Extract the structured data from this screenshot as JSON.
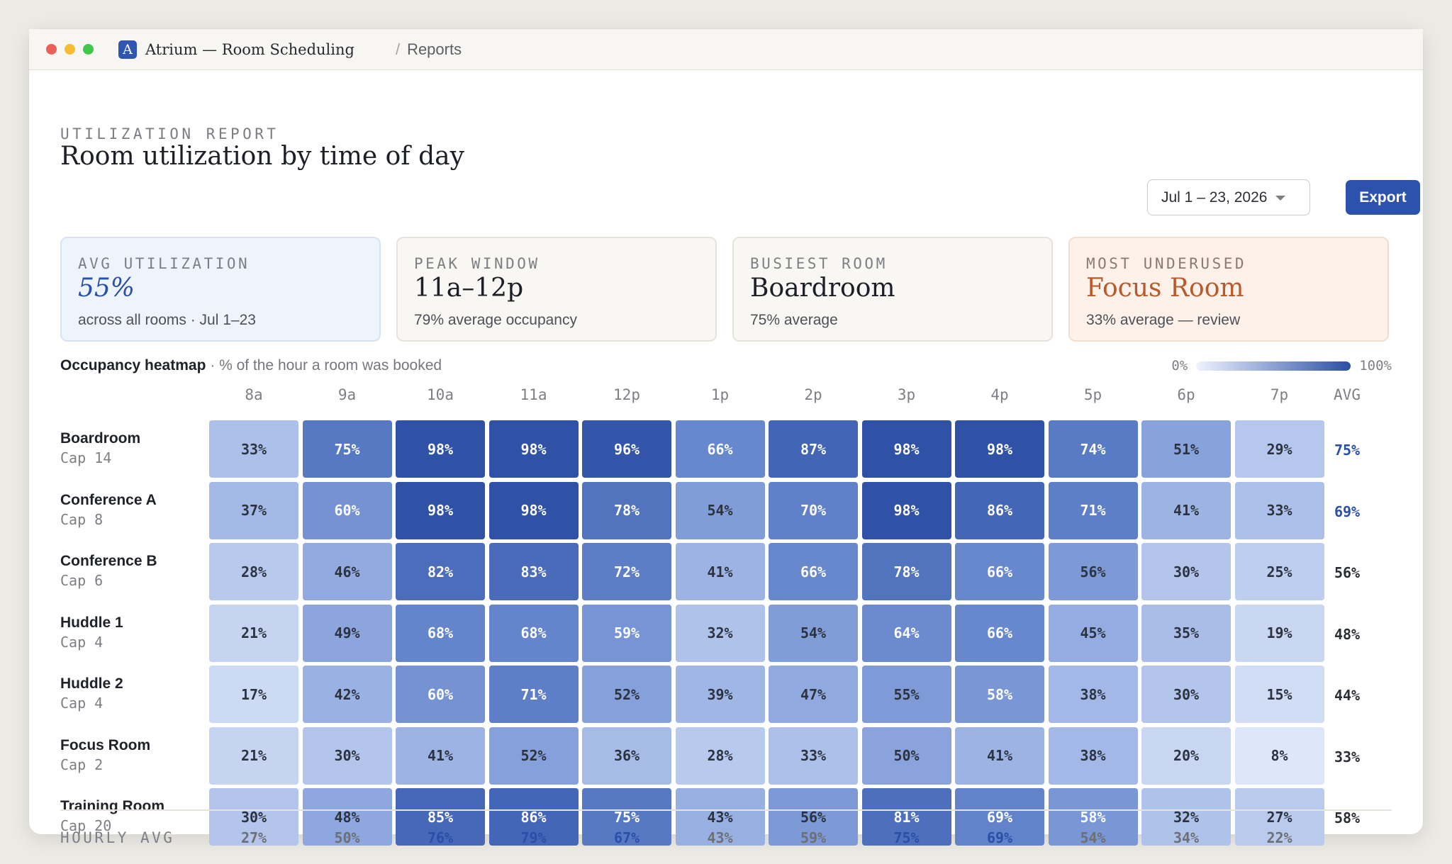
{
  "window": {
    "app_logo": "A",
    "app_title": "Atrium — Room Scheduling",
    "breadcrumb_sep": "/",
    "breadcrumb": "Reports"
  },
  "header": {
    "eyebrow": "UTILIZATION REPORT",
    "title": "Room utilization by time of day",
    "date_range": "Jul 1 – 23, 2026",
    "export_label": "Export"
  },
  "kpis": [
    {
      "label": "AVG UTILIZATION",
      "value": "55%",
      "sub": "across all rooms · Jul 1–23"
    },
    {
      "label": "PEAK WINDOW",
      "value": "11a–12p",
      "sub": "79% average occupancy"
    },
    {
      "label": "BUSIEST ROOM",
      "value": "Boardroom",
      "sub": "75% average"
    },
    {
      "label": "MOST UNDERUSED",
      "value": "Focus Room",
      "sub": "33% average — review"
    }
  ],
  "heatmap": {
    "title": "Occupancy heatmap",
    "subtitle": " · % of the hour a room was booked",
    "legend_min": "0%",
    "legend_max": "100%",
    "colors": {
      "low": "#eef3fd",
      "high": "#2c4fa6",
      "accent": "#2a4fa8"
    },
    "columns": [
      "8a",
      "9a",
      "10a",
      "11a",
      "12p",
      "1p",
      "2p",
      "3p",
      "4p",
      "5p",
      "6p",
      "7p"
    ],
    "avg_header": "AVG",
    "footer_label": "HOURLY AVG"
  },
  "chart_data": {
    "type": "heatmap",
    "title": "Occupancy heatmap",
    "x_categories": [
      "8a",
      "9a",
      "10a",
      "11a",
      "12p",
      "1p",
      "2p",
      "3p",
      "4p",
      "5p",
      "6p",
      "7p"
    ],
    "rows": [
      {
        "name": "Boardroom",
        "cap": "Cap 14",
        "values": [
          33,
          75,
          98,
          98,
          96,
          66,
          87,
          98,
          98,
          74,
          51,
          29
        ],
        "avg": 75
      },
      {
        "name": "Conference A",
        "cap": "Cap 8",
        "values": [
          37,
          60,
          98,
          98,
          78,
          54,
          70,
          98,
          86,
          71,
          41,
          33
        ],
        "avg": 69
      },
      {
        "name": "Conference B",
        "cap": "Cap 6",
        "values": [
          28,
          46,
          82,
          83,
          72,
          41,
          66,
          78,
          66,
          56,
          30,
          25
        ],
        "avg": 56
      },
      {
        "name": "Huddle 1",
        "cap": "Cap 4",
        "values": [
          21,
          49,
          68,
          68,
          59,
          32,
          54,
          64,
          66,
          45,
          35,
          19
        ],
        "avg": 48
      },
      {
        "name": "Huddle 2",
        "cap": "Cap 4",
        "values": [
          17,
          42,
          60,
          71,
          52,
          39,
          47,
          55,
          58,
          38,
          30,
          15
        ],
        "avg": 44
      },
      {
        "name": "Focus Room",
        "cap": "Cap 2",
        "values": [
          21,
          30,
          41,
          52,
          36,
          28,
          33,
          50,
          41,
          38,
          20,
          8
        ],
        "avg": 33
      },
      {
        "name": "Training Room",
        "cap": "Cap 20",
        "values": [
          30,
          48,
          85,
          86,
          75,
          43,
          56,
          81,
          69,
          58,
          32,
          27
        ],
        "avg": 58
      }
    ],
    "hourly_avg": [
      27,
      50,
      76,
      79,
      67,
      43,
      59,
      75,
      69,
      54,
      34,
      22
    ],
    "value_range": [
      0,
      100
    ],
    "unit": "%"
  }
}
